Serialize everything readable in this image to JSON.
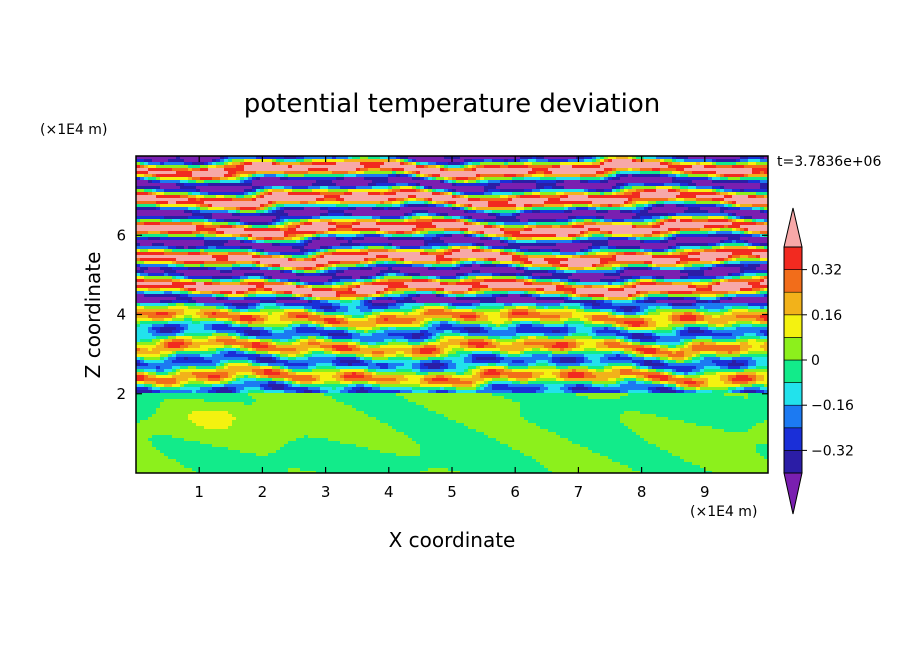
{
  "chart_data": {
    "type": "heatmap",
    "title": "potential temperature deviation",
    "xlabel": "X coordinate",
    "ylabel": "Z coordinate",
    "x_unit": "(×1E4 m)",
    "y_unit": "(×1E4 m)",
    "xlim": [
      0,
      10
    ],
    "ylim": [
      0,
      8
    ],
    "x_ticks": [
      1,
      2,
      3,
      4,
      5,
      6,
      7,
      8,
      9
    ],
    "y_ticks": [
      2,
      4,
      6
    ],
    "time_label": "t=3.7836e+06",
    "colorbar": {
      "levels": [
        -0.4,
        -0.32,
        -0.24,
        -0.16,
        -0.08,
        0,
        0.08,
        0.16,
        0.24,
        0.32,
        0.4
      ],
      "labels": [
        "-0.32",
        "-0.16",
        "0",
        "0.16",
        "0.32"
      ],
      "label_values": [
        -0.32,
        -0.16,
        0,
        0.16,
        0.32
      ],
      "colors": [
        "#7a1fb0",
        "#2b1da6",
        "#1a2fd8",
        "#1c7af2",
        "#22e2ec",
        "#12eb8a",
        "#8cf01c",
        "#f4f210",
        "#f2b21a",
        "#f26d1a",
        "#f22a20",
        "#f7a8a8"
      ],
      "extend": "both"
    },
    "bands": [
      {
        "z": [
          0.0,
          2.0
        ],
        "description_value": 0.04
      },
      {
        "z": [
          2.0,
          4.2
        ],
        "description_value": 0.0
      },
      {
        "z": [
          4.2,
          8.0
        ],
        "description_value": 0.0
      }
    ]
  }
}
